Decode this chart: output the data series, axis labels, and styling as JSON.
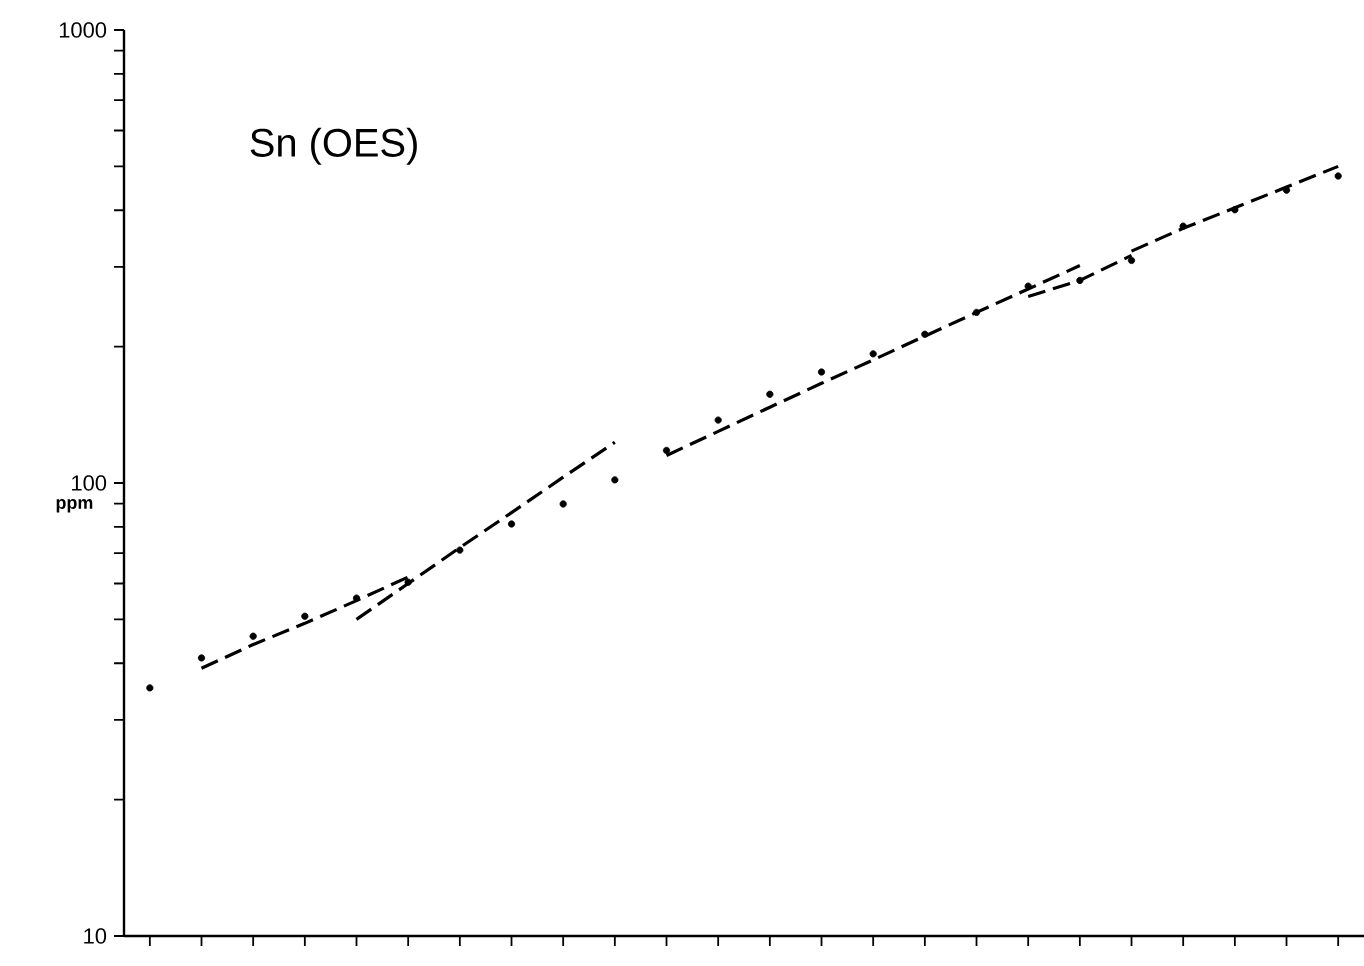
{
  "chart_data": {
    "type": "scatter",
    "title": "Sn (OES)",
    "ylabel": "ppm",
    "log": "y",
    "ylim": [
      10,
      1000
    ],
    "yticks": [
      10,
      {
        "value": 20,
        "label": null
      },
      {
        "value": 30,
        "label": null
      },
      {
        "value": 40,
        "label": null
      },
      {
        "value": 50,
        "label": null
      },
      {
        "value": 60,
        "label": null
      },
      {
        "value": 70,
        "label": null
      },
      {
        "value": 80,
        "label": null
      },
      {
        "value": 90,
        "label": null
      },
      100,
      {
        "value": 200,
        "label": null
      },
      {
        "value": 300,
        "label": null
      },
      {
        "value": 400,
        "label": null
      },
      {
        "value": 500,
        "label": null
      },
      {
        "value": 600,
        "label": null
      },
      {
        "value": 700,
        "label": null
      },
      {
        "value": 800,
        "label": null
      },
      {
        "value": 900,
        "label": null
      },
      1000
    ],
    "tick_labels": "y",
    "grid": false,
    "categories": [
      null,
      null,
      null,
      null,
      null,
      null,
      null,
      null,
      null,
      null,
      null,
      null,
      null,
      null,
      null,
      null,
      null,
      null,
      null,
      null,
      null,
      null,
      null,
      null
    ],
    "series": [
      {
        "marker": "circle",
        "color": "#000000",
        "values": [
          35.3,
          41.1,
          45.9,
          50.8,
          55.7,
          60.4,
          71.1,
          81.2,
          89.9,
          101.6,
          118,
          137.7,
          157,
          175.8,
          192.8,
          213,
          238,
          272,
          280,
          310,
          369,
          401,
          443,
          476
        ]
      },
      {
        "type": "line",
        "line_style": "dashed",
        "marker": "none",
        "color": "#000000",
        "values": [
          null,
          39,
          44,
          49,
          55,
          62,
          null,
          null,
          null,
          null,
          null,
          null,
          null,
          null,
          null,
          null,
          null,
          null,
          null,
          null,
          null,
          null,
          null,
          null
        ]
      },
      {
        "type": "line",
        "line_style": "dashed",
        "marker": "none",
        "color": "#000000",
        "values": [
          null,
          null,
          null,
          null,
          50,
          60,
          72,
          86,
          103,
          123,
          null,
          null,
          null,
          null,
          null,
          null,
          null,
          null,
          null,
          null,
          null,
          null,
          null,
          null
        ]
      },
      {
        "type": "line",
        "line_style": "dashed",
        "marker": "none",
        "color": "#000000",
        "values": [
          null,
          null,
          null,
          null,
          null,
          null,
          null,
          null,
          null,
          null,
          115,
          130,
          147,
          166,
          187,
          211,
          238,
          268,
          302,
          null,
          null,
          null,
          null,
          null
        ]
      },
      {
        "type": "line",
        "line_style": "dashed",
        "marker": "none",
        "color": "#000000",
        "values": [
          null,
          null,
          null,
          null,
          null,
          null,
          null,
          null,
          null,
          null,
          null,
          null,
          null,
          null,
          null,
          null,
          null,
          258,
          280,
          318,
          null,
          null,
          null,
          null
        ]
      },
      {
        "type": "line",
        "line_style": "dashed",
        "marker": "none",
        "color": "#000000",
        "values": [
          null,
          null,
          null,
          null,
          null,
          null,
          null,
          null,
          null,
          null,
          null,
          null,
          null,
          null,
          null,
          null,
          null,
          null,
          null,
          325,
          365,
          405,
          450,
          500
        ]
      }
    ]
  }
}
